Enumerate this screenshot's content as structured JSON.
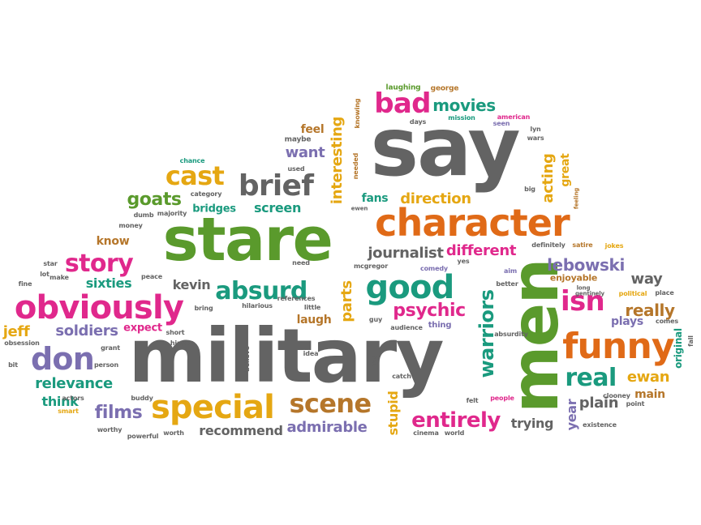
{
  "palette": {
    "gray": "#636363",
    "green": "#5a9a2c",
    "orange": "#e06a17",
    "magenta": "#e0288c",
    "teal": "#1a9a7e",
    "purple": "#7b6fb0",
    "gold": "#e5a712",
    "brown": "#b5762a"
  },
  "words": [
    "military",
    "say",
    "stare",
    "men",
    "character",
    "obviously",
    "funny",
    "good",
    "brief",
    "special",
    "scene",
    "don",
    "absurd",
    "cast",
    "story",
    "bad",
    "isn",
    "warriors",
    "real",
    "entirely",
    "psychic",
    "movies",
    "lebowski",
    "really",
    "interesting",
    "acting",
    "direction",
    "journalist",
    "different",
    "admirable",
    "recommend",
    "films",
    "relevance",
    "soldiers",
    "goats",
    "screen",
    "parts",
    "jeff",
    "way",
    "want",
    "sixties",
    "kevin",
    "ewan",
    "plain",
    "trying",
    "laugh",
    "think",
    "stupid",
    "year",
    "main",
    "plays",
    "fans",
    "feel",
    "know",
    "bridges",
    "great",
    "original",
    "expect",
    "enjoyable",
    "laughing",
    "george",
    "mission",
    "american",
    "days",
    "maybe",
    "knowing",
    "seen",
    "lyn",
    "wars",
    "chance",
    "used",
    "needed",
    "ewen",
    "big",
    "feeling",
    "category",
    "majority",
    "dumb",
    "money",
    "definitely",
    "satire",
    "jokes",
    "star",
    "need",
    "mcgregor",
    "comedy",
    "yes",
    "aim",
    "lot",
    "make",
    "peace",
    "fine",
    "better",
    "gentinely",
    "long",
    "political",
    "place",
    "comes",
    "bring",
    "hilarious",
    "little",
    "references",
    "guy",
    "audience",
    "thing",
    "absurdity",
    "obsession",
    "grant",
    "short",
    "hippy",
    "believe",
    "idea",
    "bit",
    "person",
    "catch",
    "actors",
    "buddy",
    "smart",
    "iraq",
    "felt",
    "people",
    "clooney",
    "point",
    "existence",
    "fall",
    "worthy",
    "powerful",
    "worth",
    "cinema",
    "world"
  ]
}
